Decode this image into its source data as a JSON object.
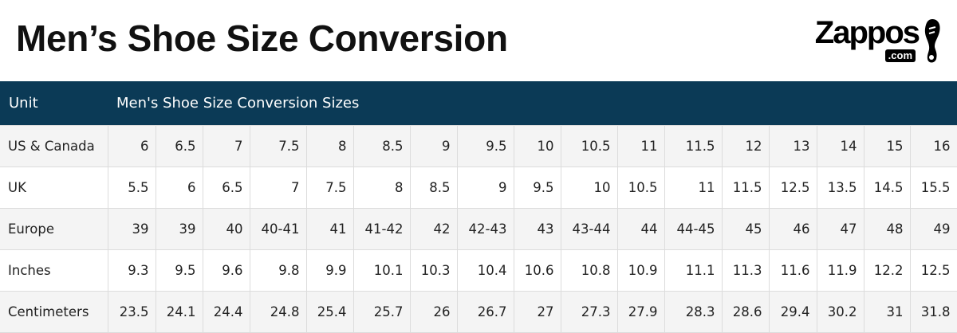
{
  "header": {
    "title": "Men’s Shoe Size Conversion",
    "logo": {
      "brand": "Zappos",
      "suffix": ".com"
    }
  },
  "table": {
    "columns": [
      "Unit",
      "Men's Shoe Size Conversion Sizes"
    ],
    "rows": [
      [
        "US & Canada",
        "6",
        "6.5",
        "7",
        "7.5",
        "8",
        "8.5",
        "9",
        "9.5",
        "10",
        "10.5",
        "11",
        "11.5",
        "12",
        "13",
        "14",
        "15",
        "16"
      ],
      [
        "UK",
        "5.5",
        "6",
        "6.5",
        "7",
        "7.5",
        "8",
        "8.5",
        "9",
        "9.5",
        "10",
        "10.5",
        "11",
        "11.5",
        "12.5",
        "13.5",
        "14.5",
        "15.5"
      ],
      [
        "Europe",
        "39",
        "39",
        "40",
        "40-41",
        "41",
        "41-42",
        "42",
        "42-43",
        "43",
        "43-44",
        "44",
        "44-45",
        "45",
        "46",
        "47",
        "48",
        "49"
      ],
      [
        "Inches",
        "9.3",
        "9.5",
        "9.6",
        "9.8",
        "9.9",
        "10.1",
        "10.3",
        "10.4",
        "10.6",
        "10.8",
        "10.9",
        "11.1",
        "11.3",
        "11.6",
        "11.9",
        "12.2",
        "12.5"
      ],
      [
        "Centimeters",
        "23.5",
        "24.1",
        "24.4",
        "24.8",
        "25.4",
        "25.7",
        "26",
        "26.7",
        "27",
        "27.3",
        "27.9",
        "28.3",
        "28.6",
        "29.4",
        "30.2",
        "31",
        "31.8"
      ]
    ]
  }
}
